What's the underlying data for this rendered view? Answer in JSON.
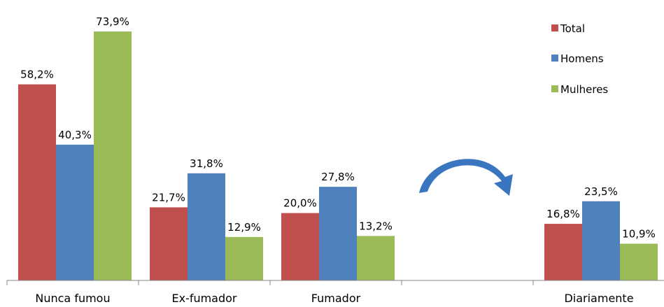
{
  "chart_data": {
    "type": "bar",
    "categories": [
      "Nunca fumou",
      "Ex-fumador",
      "Fumador",
      "",
      "Diariamente"
    ],
    "series": [
      {
        "name": "Total",
        "color": "#C0504D",
        "values": [
          58.2,
          21.7,
          20.0,
          null,
          16.8
        ],
        "labels": [
          "58,2%",
          "21,7%",
          "20,0%",
          "",
          "16,8%"
        ]
      },
      {
        "name": "Homens",
        "color": "#4F81BD",
        "values": [
          40.3,
          31.8,
          27.8,
          null,
          23.5
        ],
        "labels": [
          "40,3%",
          "31,8%",
          "27,8%",
          "",
          "23,5%"
        ]
      },
      {
        "name": "Mulheres",
        "color": "#9BBB59",
        "values": [
          73.9,
          12.9,
          13.2,
          null,
          10.9
        ],
        "labels": [
          "73,9%",
          "12,9%",
          "13,2%",
          "",
          "10,9%"
        ]
      }
    ],
    "ylim": [
      0,
      80
    ],
    "grid": false,
    "legend_position": "top-right",
    "annotation": "curved-arrow-icon",
    "annotation_color": "#3A76C0"
  }
}
